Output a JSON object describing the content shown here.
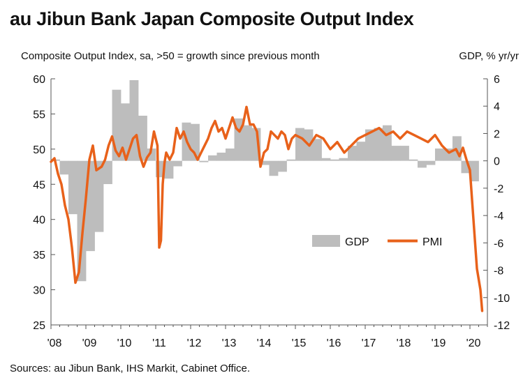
{
  "title": "au Jibun Bank Japan Composite Output Index",
  "left_axis_label": "Composite Output Index, sa, >50 = growth since previous month",
  "right_axis_label": "GDP, % yr/yr",
  "source": "Sources: au Jibun Bank, IHS Markit, Cabinet Office.",
  "colors": {
    "gdp": "#bdbdbd",
    "pmi": "#e8611a",
    "axis": "#555555",
    "background": "#ffffff"
  },
  "chart_data": {
    "type": "bar+line",
    "title": "au Jibun Bank Japan Composite Output Index",
    "ylabel": "Composite Output Index, sa, >50 = growth since previous month",
    "y2label": "GDP, % yr/yr",
    "ylim": [
      25,
      60
    ],
    "yticks": [
      25,
      30,
      35,
      40,
      45,
      50,
      55,
      60
    ],
    "y2lim": [
      -12,
      6
    ],
    "y2ticks": [
      -12,
      -10,
      -8,
      -6,
      -4,
      -2,
      0,
      2,
      4,
      6
    ],
    "xlim": [
      2008.0,
      2020.5
    ],
    "xtick_labels": [
      "'08",
      "'09",
      "'10",
      "'11",
      "'12",
      "'13",
      "'14",
      "'15",
      "'16",
      "'17",
      "'18",
      "'19",
      "'20"
    ],
    "legend": [
      "GDP",
      "PMI"
    ],
    "legend_position": "lower-right",
    "series": [
      {
        "name": "GDP",
        "type": "bar",
        "axis": "right",
        "quarters": [
          "2008Q1",
          "2008Q2",
          "2008Q3",
          "2008Q4",
          "2009Q1",
          "2009Q2",
          "2009Q3",
          "2009Q4",
          "2010Q1",
          "2010Q2",
          "2010Q3",
          "2010Q4",
          "2011Q1",
          "2011Q2",
          "2011Q3",
          "2011Q4",
          "2012Q1",
          "2012Q2",
          "2012Q3",
          "2012Q4",
          "2013Q1",
          "2013Q2",
          "2013Q3",
          "2013Q4",
          "2014Q1",
          "2014Q2",
          "2014Q3",
          "2014Q4",
          "2015Q1",
          "2015Q2",
          "2015Q3",
          "2015Q4",
          "2016Q1",
          "2016Q2",
          "2016Q3",
          "2016Q4",
          "2017Q1",
          "2017Q2",
          "2017Q3",
          "2017Q4",
          "2018Q1",
          "2018Q2",
          "2018Q3",
          "2018Q4",
          "2019Q1",
          "2019Q2",
          "2019Q3",
          "2019Q4",
          "2020Q1"
        ],
        "values": [
          0.1,
          -1.0,
          -3.9,
          -8.8,
          -6.6,
          -5.2,
          -1.7,
          5.2,
          4.2,
          5.9,
          3.3,
          0.9,
          -1.2,
          -1.3,
          -0.4,
          2.8,
          2.7,
          -0.1,
          0.4,
          0.6,
          0.9,
          3.1,
          2.6,
          2.4,
          -0.3,
          -1.1,
          -0.8,
          0.1,
          2.4,
          2.3,
          1.6,
          0.2,
          0.1,
          0.2,
          1.1,
          1.4,
          2.3,
          2.4,
          2.6,
          1.1,
          1.1,
          0.1,
          -0.5,
          -0.3,
          0.9,
          0.9,
          1.8,
          -0.9,
          -1.5
        ]
      },
      {
        "name": "PMI",
        "type": "line",
        "axis": "left",
        "x": [
          2008.0,
          2008.1,
          2008.2,
          2008.3,
          2008.4,
          2008.5,
          2008.6,
          2008.7,
          2008.8,
          2008.9,
          2009.0,
          2009.1,
          2009.2,
          2009.3,
          2009.45,
          2009.55,
          2009.65,
          2009.75,
          2009.85,
          2009.95,
          2010.05,
          2010.15,
          2010.25,
          2010.35,
          2010.45,
          2010.55,
          2010.65,
          2010.75,
          2010.85,
          2010.95,
          2011.05,
          2011.1,
          2011.15,
          2011.2,
          2011.25,
          2011.3,
          2011.4,
          2011.5,
          2011.6,
          2011.7,
          2011.8,
          2011.9,
          2012.0,
          2012.1,
          2012.2,
          2012.3,
          2012.4,
          2012.5,
          2012.6,
          2012.7,
          2012.8,
          2012.9,
          2013.0,
          2013.1,
          2013.2,
          2013.3,
          2013.4,
          2013.5,
          2013.6,
          2013.7,
          2013.8,
          2013.9,
          2014.0,
          2014.1,
          2014.2,
          2014.3,
          2014.4,
          2014.5,
          2014.6,
          2014.7,
          2014.8,
          2014.9,
          2015.0,
          2015.2,
          2015.4,
          2015.6,
          2015.8,
          2016.0,
          2016.2,
          2016.4,
          2016.6,
          2016.8,
          2017.0,
          2017.2,
          2017.4,
          2017.6,
          2017.8,
          2018.0,
          2018.2,
          2018.4,
          2018.6,
          2018.8,
          2019.0,
          2019.2,
          2019.4,
          2019.6,
          2019.7,
          2019.8,
          2019.9,
          2020.0,
          2020.1,
          2020.2,
          2020.3,
          2020.35
        ],
        "values": [
          48.2,
          48.7,
          46.5,
          45.0,
          42.0,
          40.0,
          36.0,
          31.0,
          32.5,
          38.0,
          43.0,
          48.5,
          50.5,
          47.0,
          47.5,
          48.5,
          50.5,
          51.8,
          49.8,
          49.0,
          50.2,
          48.5,
          50.0,
          51.5,
          52.0,
          49.0,
          47.5,
          48.8,
          49.5,
          52.5,
          50.5,
          36.0,
          37.0,
          45.0,
          48.0,
          49.5,
          48.5,
          49.5,
          53.0,
          51.5,
          52.5,
          51.0,
          50.0,
          49.5,
          48.5,
          49.5,
          50.5,
          51.5,
          53.0,
          54.0,
          52.5,
          53.0,
          51.5,
          53.0,
          54.5,
          53.0,
          52.5,
          53.5,
          56.0,
          53.5,
          53.5,
          52.5,
          47.5,
          49.5,
          50.0,
          52.5,
          52.0,
          51.5,
          52.5,
          52.0,
          50.0,
          51.5,
          52.0,
          51.5,
          50.5,
          52.0,
          51.5,
          50.0,
          51.0,
          49.5,
          50.5,
          51.5,
          52.0,
          52.5,
          53.0,
          52.0,
          52.5,
          51.5,
          52.5,
          52.0,
          51.5,
          51.0,
          52.0,
          50.5,
          49.5,
          50.0,
          49.0,
          50.2,
          48.5,
          47.0,
          40.0,
          33.0,
          30.0,
          27.0
        ]
      }
    ]
  }
}
